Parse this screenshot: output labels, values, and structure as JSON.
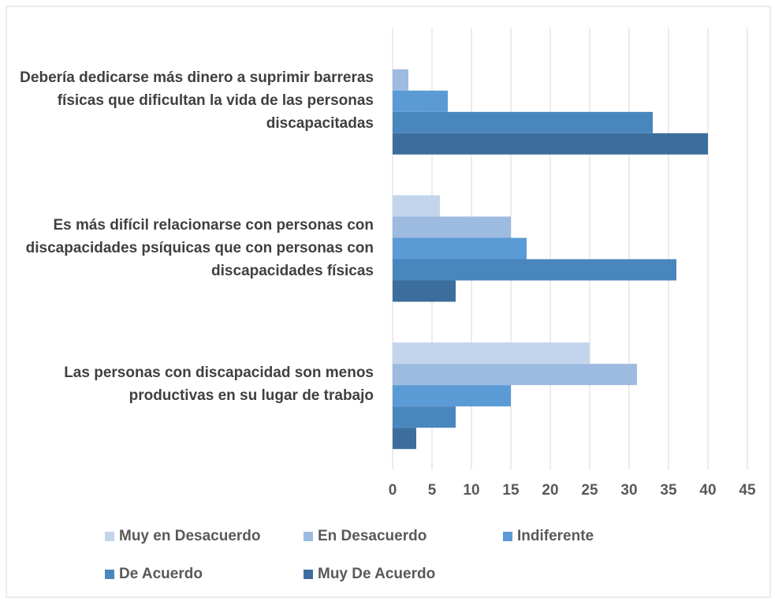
{
  "chart_data": {
    "type": "barh",
    "categories": [
      "Debería dedicarse más dinero a suprimir barreras físicas que dificultan la vida de las personas discapacitadas",
      "Es más difícil relacionarse con personas con discapacidades psíquicas que con personas con discapacidades físicas",
      "Las personas con discapacidad son menos productivas en su lugar de trabajo"
    ],
    "series": [
      {
        "name": "Muy en Desacuerdo",
        "color": "#c3d5ec",
        "values": [
          0,
          6,
          25
        ]
      },
      {
        "name": "En Desacuerdo",
        "color": "#9dbbe0",
        "values": [
          2,
          15,
          31
        ]
      },
      {
        "name": "Indiferente",
        "color": "#5b9bd5",
        "values": [
          7,
          17,
          15
        ]
      },
      {
        "name": "De Acuerdo",
        "color": "#4a86be",
        "values": [
          33,
          36,
          8
        ]
      },
      {
        "name": "Muy De Acuerdo",
        "color": "#3c6e9d",
        "values": [
          40,
          8,
          3
        ]
      }
    ],
    "xlim": [
      0,
      45
    ],
    "xticks": [
      0,
      5,
      10,
      15,
      20,
      25,
      30,
      35,
      40,
      45
    ],
    "grid": true
  }
}
